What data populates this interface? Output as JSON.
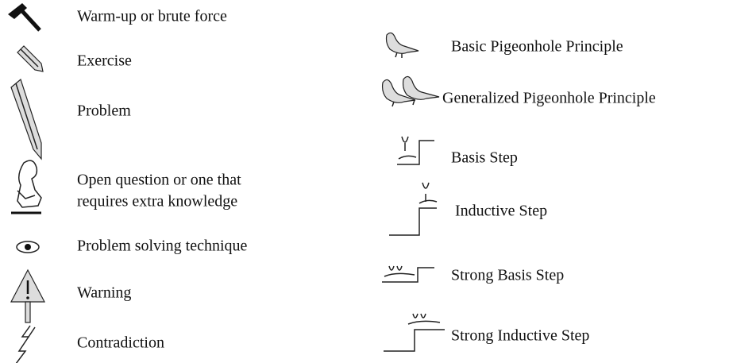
{
  "left": [
    {
      "label": "Warm-up or brute force"
    },
    {
      "label": "Exercise"
    },
    {
      "label": "Problem"
    },
    {
      "lines": [
        "Open question or one that",
        "requires extra knowledge"
      ]
    },
    {
      "label": "Problem solving technique"
    },
    {
      "label": "Warning"
    },
    {
      "label": "Contradiction"
    }
  ],
  "right": [
    {
      "label": "Basic Pigeonhole Principle"
    },
    {
      "label": "Generalized Pigeonhole Principle"
    },
    {
      "label": "Basis Step"
    },
    {
      "label": "Inductive Step"
    },
    {
      "label": "Strong Basis Step"
    },
    {
      "label": "Strong Inductive Step"
    }
  ]
}
